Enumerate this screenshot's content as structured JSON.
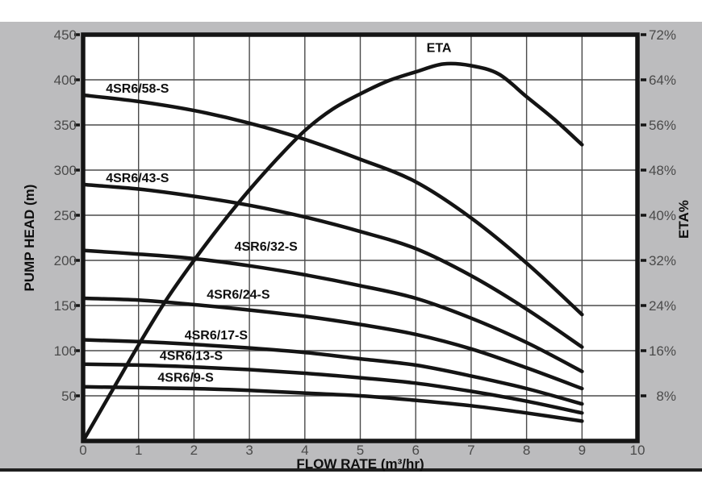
{
  "figure": {
    "background": "#ffffff",
    "panel_color": "#bcbcbe",
    "panel_edge_color": "#1f1f1f",
    "plot_background": "#ffffff",
    "grid_color": "#4a4a4a",
    "curve_color": "#141414",
    "border_color": "#151515",
    "tick_text_color": "#4a4a4a",
    "label_text_color": "#0f0f0f"
  },
  "chart_data": {
    "type": "line",
    "title": "",
    "grid": true,
    "legend": "inline-labels",
    "x_axis": {
      "label": "FLOW RATE (m³/hr)",
      "min": 0,
      "max": 10,
      "ticks": [
        0,
        1,
        2,
        3,
        4,
        5,
        6,
        7,
        8,
        9,
        10
      ]
    },
    "y_axis_left": {
      "label": "PUMP HEAD (m)",
      "min": 0,
      "max": 450,
      "ticks": [
        450,
        400,
        350,
        300,
        250,
        200,
        150,
        100,
        50
      ]
    },
    "y_axis_right": {
      "label": "ETA%",
      "min": 0,
      "max": 72,
      "tick_labels": [
        "72%",
        "64%",
        "56%",
        "48%",
        "40%",
        "32%",
        "24%",
        "16%",
        "8%"
      ],
      "tick_values": [
        72,
        64,
        56,
        48,
        40,
        32,
        24,
        16,
        8
      ]
    },
    "series": [
      {
        "name": "4SR6/58-S",
        "axis": "left",
        "x": [
          0,
          1,
          2,
          3,
          4,
          5,
          6,
          7,
          8,
          9
        ],
        "y": [
          383,
          376,
          366,
          352,
          334,
          312,
          287,
          247,
          197,
          140
        ],
        "label_pos": {
          "x": 0.98,
          "y": 391
        }
      },
      {
        "name": "4SR6/43-S",
        "axis": "left",
        "x": [
          0,
          1,
          2,
          3,
          4,
          5,
          6,
          7,
          8,
          9
        ],
        "y": [
          284,
          279,
          271,
          261,
          248,
          232,
          213,
          183,
          146,
          104
        ],
        "label_pos": {
          "x": 0.98,
          "y": 292
        }
      },
      {
        "name": "4SR6/32-S",
        "axis": "left",
        "x": [
          0,
          1,
          2,
          3,
          4,
          5,
          6,
          7,
          8,
          9
        ],
        "y": [
          211,
          207,
          202,
          194,
          184,
          172,
          158,
          136,
          109,
          77
        ],
        "label_pos": {
          "x": 3.3,
          "y": 216
        }
      },
      {
        "name": "4SR6/24-S",
        "axis": "left",
        "x": [
          0,
          1,
          2,
          3,
          4,
          5,
          6,
          7,
          8,
          9
        ],
        "y": [
          158,
          156,
          151,
          145,
          138,
          129,
          118,
          102,
          81,
          58
        ],
        "label_pos": {
          "x": 2.8,
          "y": 163
        }
      },
      {
        "name": "4SR6/17-S",
        "axis": "left",
        "x": [
          0,
          1,
          2,
          3,
          4,
          5,
          6,
          7,
          8,
          9
        ],
        "y": [
          112,
          110,
          107,
          103,
          98,
          91,
          84,
          72,
          58,
          41
        ],
        "label_pos": {
          "x": 2.4,
          "y": 118
        }
      },
      {
        "name": "4SR6/13-S",
        "axis": "left",
        "x": [
          0,
          1,
          2,
          3,
          4,
          5,
          6,
          7,
          8,
          9
        ],
        "y": [
          85,
          84,
          82,
          79,
          75,
          70,
          64,
          55,
          44,
          31
        ],
        "label_pos": {
          "x": 1.95,
          "y": 95
        }
      },
      {
        "name": "4SR6/9-S",
        "axis": "left",
        "x": [
          0,
          1,
          2,
          3,
          4,
          5,
          6,
          7,
          8,
          9
        ],
        "y": [
          60,
          59,
          58,
          56,
          53,
          50,
          45,
          39,
          31,
          22
        ],
        "label_pos": {
          "x": 1.85,
          "y": 71
        }
      },
      {
        "name": "ETA",
        "axis": "right",
        "x": [
          0,
          0.5,
          1,
          1.5,
          2,
          2.5,
          3,
          3.5,
          4,
          4.5,
          5,
          5.5,
          6,
          6.5,
          7,
          7.5,
          8,
          8.5,
          9
        ],
        "y": [
          0,
          8.5,
          17,
          25,
          32,
          38.5,
          44.5,
          50,
          55,
          58.8,
          61.5,
          63.8,
          65.4,
          66.8,
          66.5,
          65,
          61,
          57,
          52.5
        ],
        "label_pos": {
          "x": 6.42,
          "y": 69.8
        }
      }
    ]
  }
}
